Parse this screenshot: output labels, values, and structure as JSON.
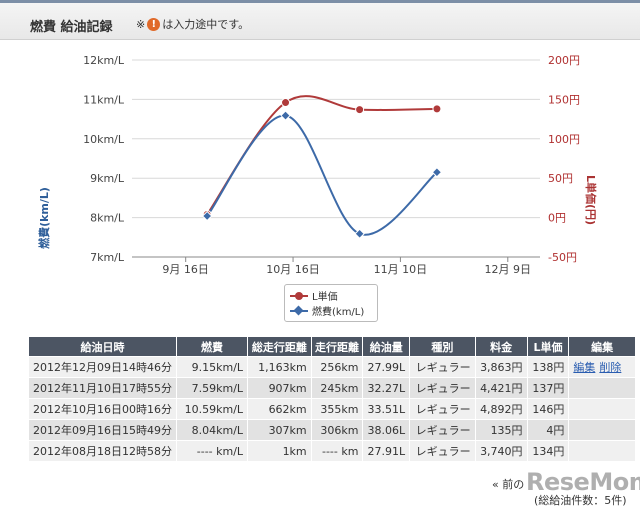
{
  "header": {
    "title": "燃費 給油記録",
    "note_mark": "※",
    "note_icon": "!",
    "note_text": "は入力途中です。"
  },
  "chart_data": {
    "type": "line",
    "categories": [
      "9月 16日",
      "10月 16日",
      "11月 10日",
      "12月 9日"
    ],
    "x_positions": [
      3.2,
      3.93,
      4.62,
      5.34
    ],
    "x_category_positions": [
      3,
      4,
      5,
      6
    ],
    "series": [
      {
        "name": "燃費(km/L)",
        "axis": "left",
        "color": "#3d6aa8",
        "values": [
          8.04,
          10.59,
          7.59,
          9.15
        ]
      },
      {
        "name": "L単価",
        "axis": "right",
        "color": "#b03a3a",
        "values": [
          4,
          146,
          137,
          138
        ]
      }
    ],
    "y_left": {
      "label": "燃費(km/L)",
      "ticks": [
        "12km/L",
        "11km/L",
        "10km/L",
        "9km/L",
        "8km/L",
        "7km/L"
      ],
      "range": [
        7,
        12
      ]
    },
    "y_right": {
      "label": "L単価(円)",
      "ticks": [
        "200円",
        "150円",
        "100円",
        "50円",
        "0円",
        "-50円"
      ],
      "range": [
        -50,
        200
      ]
    },
    "grid": true,
    "legend_position": "bottom"
  },
  "table": {
    "headers": [
      "給油日時",
      "燃費",
      "総走行距離",
      "走行距離",
      "給油量",
      "種別",
      "料金",
      "L単価",
      "編集"
    ],
    "rows": [
      [
        "2012年12月09日14時46分",
        "9.15km/L",
        "1,163km",
        "256km",
        "27.99L",
        "レギュラー",
        "3,863円",
        "138円"
      ],
      [
        "2012年11月10日17時55分",
        "7.59km/L",
        "907km",
        "245km",
        "32.27L",
        "レギュラー",
        "4,421円",
        "137円"
      ],
      [
        "2012年10月16日00時16分",
        "10.59km/L",
        "662km",
        "355km",
        "33.51L",
        "レギュラー",
        "4,892円",
        "146円"
      ],
      [
        "2012年09月16日15時49分",
        "8.04km/L",
        "307km",
        "306km",
        "38.06L",
        "レギュラー",
        "135円",
        "4円"
      ],
      [
        "2012年08月18日12時58分",
        "---- km/L",
        "1km",
        "---- km",
        "27.91L",
        "レギュラー",
        "3,740円",
        "134円"
      ]
    ],
    "edit_label": "編集",
    "delete_label": "削除"
  },
  "footer": {
    "pager_text": "« 前の",
    "count_text": "(総給油件数：5件)",
    "watermark": "ReseMom"
  }
}
